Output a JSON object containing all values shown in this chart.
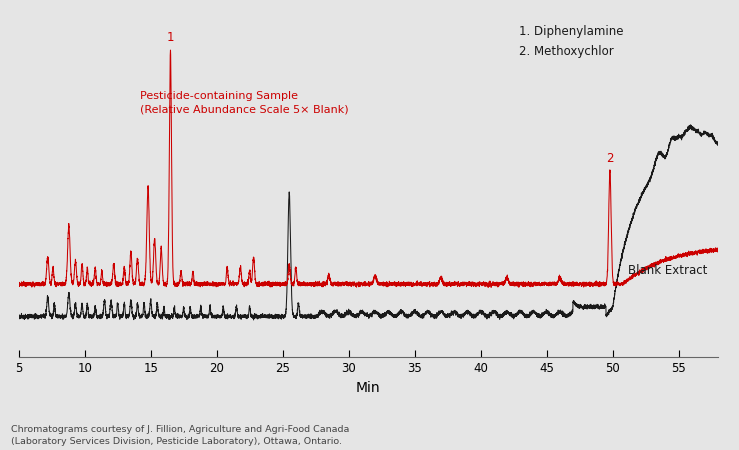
{
  "background_color": "#e5e5e5",
  "plot_bg_color": "#e5e5e5",
  "red_color": "#cc0000",
  "black_color": "#1a1a1a",
  "xlabel": "Min",
  "xlabel_fontsize": 10,
  "xmin": 5,
  "xmax": 58,
  "xticks": [
    5,
    10,
    15,
    20,
    25,
    30,
    35,
    40,
    45,
    50,
    55
  ],
  "annotation_label": "Pesticide-containing Sample\n(Relative Abundance Scale 5× Blank)",
  "blank_label": "Blank Extract",
  "legend_text": "1. Diphenylamine\n2. Methoxychlor",
  "footnote": "Chromatograms courtesy of J. Fillion, Agriculture and Agri-Food Canada\n(Laboratory Services Division, Pesticide Laboratory), Ottawa, Ontario."
}
